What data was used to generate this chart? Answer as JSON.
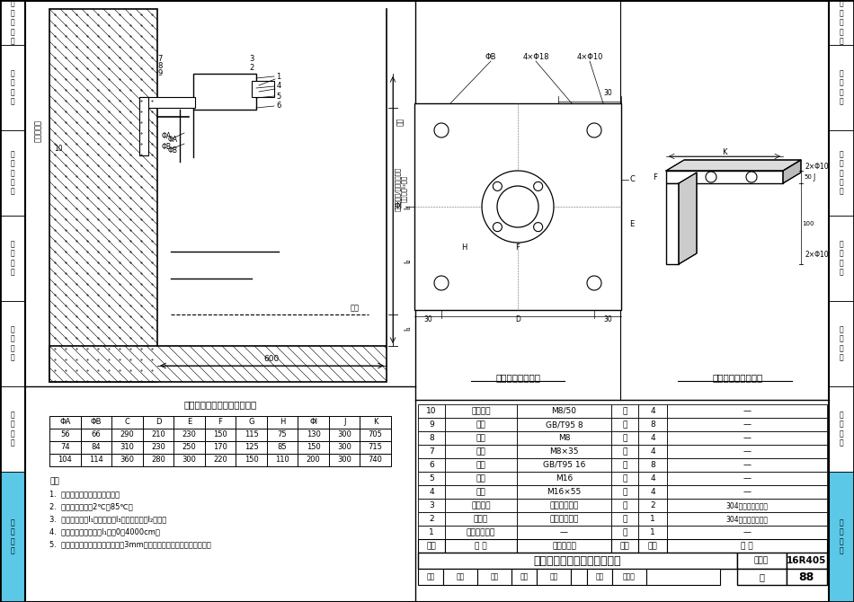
{
  "page_bg": "#ffffff",
  "sidebar_labels": [
    "编\n制\n总\n说\n明",
    "流\n量\n仪\n表",
    "热\n冷\n量\n仪\n表",
    "温\n度\n仪\n表",
    "压\n力\n仪\n表",
    "湿\n度\n仪\n表",
    "液\n位\n仪\n表"
  ],
  "liquid_sidebar_bg": "#5bc8e8",
  "main_title": "超声波液位计池壁支架安装图",
  "drawing_title_left": "安装板大样条件图",
  "drawing_title_right": "安装支架大样条件图",
  "dim_table_title": "超声波液位计安装支架尺寸表",
  "dim_table_headers": [
    "ΦA",
    "ΦB",
    "C",
    "D",
    "E",
    "F",
    "G",
    "H",
    "ΦI",
    "J",
    "K"
  ],
  "dim_table_rows": [
    [
      "56",
      "66",
      "290",
      "210",
      "230",
      "150",
      "115",
      "75",
      "130",
      "300",
      "705"
    ],
    [
      "74",
      "84",
      "310",
      "230",
      "250",
      "170",
      "125",
      "85",
      "150",
      "300",
      "715"
    ],
    [
      "104",
      "114",
      "360",
      "280",
      "300",
      "220",
      "150",
      "110",
      "200",
      "300",
      "740"
    ]
  ],
  "notes_title": "注：",
  "notes": [
    "1.  适用于混凝土水池壁的安装。",
    "2.  适用于设计温度2℃～85℃。",
    "3.  当前液位高度l₁由安装高度l₃减去测量距离l₂求得。",
    "4.  测量范围（液位高度l₁）为0～4000cm。",
    "5.  安装板及支架材料厚度不应小于3mm，具体根据液位计重量进行复核。"
  ],
  "bom_headers": [
    "序号",
    "名 称",
    "型号及规格",
    "单位",
    "数量",
    "备 注"
  ],
  "bom_rows": [
    [
      "10",
      "膨胀螺栓",
      "M8/50",
      "个",
      "4",
      "—"
    ],
    [
      "9",
      "垫圈",
      "GB/T95 8",
      "个",
      "8",
      "—"
    ],
    [
      "8",
      "螺母",
      "M8",
      "个",
      "4",
      "—"
    ],
    [
      "7",
      "螺栓",
      "M8×35",
      "个",
      "4",
      "—"
    ],
    [
      "6",
      "垫圈",
      "GB/T95 16",
      "个",
      "8",
      "—"
    ],
    [
      "5",
      "螺母",
      "M16",
      "个",
      "4",
      "—"
    ],
    [
      "4",
      "螺栓",
      "M16×55",
      "个",
      "4",
      "—"
    ],
    [
      "3",
      "安装支架",
      "见大样示意图",
      "个",
      "2",
      "304角钢，现场制作"
    ],
    [
      "2",
      "安装板",
      "见大样示意图",
      "块",
      "1",
      "304钢板，现场制作"
    ],
    [
      "1",
      "超声波液位计",
      "—",
      "套",
      "1",
      "—"
    ]
  ]
}
